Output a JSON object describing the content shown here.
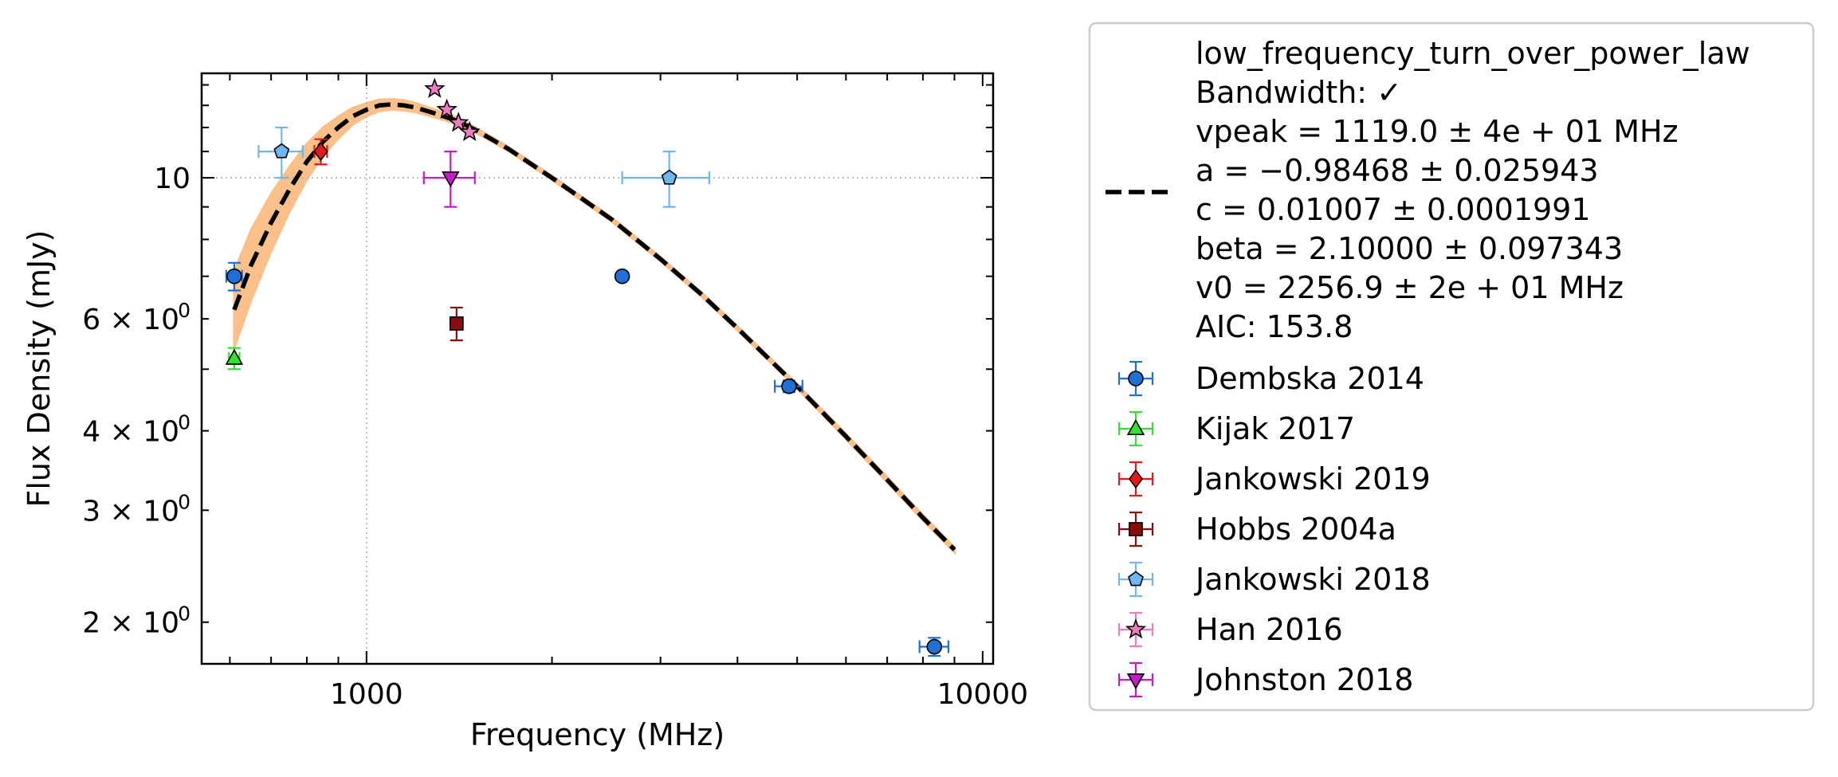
{
  "chart_data": {
    "type": "scatter",
    "xlabel": "Frequency (MHz)",
    "ylabel": "Flux Density (mJy)",
    "xscale": "log",
    "yscale": "log",
    "xlim": [
      540,
      10400
    ],
    "ylim": [
      1.72,
      14.6
    ],
    "grid": "dotted lines at x=1000 and y=10",
    "x_ticks": [
      {
        "value": 1000,
        "label": "1000"
      },
      {
        "value": 10000,
        "label": "10000"
      }
    ],
    "y_ticks": [
      {
        "value": 10,
        "label": "10",
        "sup": ""
      },
      {
        "value": 6,
        "label": "6 × 10",
        "sup": "0"
      },
      {
        "value": 4,
        "label": "4 × 10",
        "sup": "0"
      },
      {
        "value": 3,
        "label": "3 × 10",
        "sup": "0"
      },
      {
        "value": 2,
        "label": "2 × 10",
        "sup": "0"
      }
    ],
    "legend_position": "outside-right",
    "model": {
      "name": "low_frequency_turn_over_power_law",
      "lines": [
        "low_frequency_turn_over_power_law",
        "Bandwidth: ✓",
        "vpeak = 1119.0 ± 4e + 01 MHz",
        "a = −0.98468 ± 0.025943",
        "c = 0.01007 ± 0.0001991",
        "beta = 2.10000 ± 0.097343",
        "v0 = 2256.9 ± 2e + 01 MHz",
        "AIC: 153.8"
      ],
      "color": "#000000",
      "band_color": "#fbbf8a",
      "curve": {
        "x": [
          610,
          650,
          700,
          750,
          800,
          850,
          900,
          950,
          1000,
          1050,
          1100,
          1150,
          1200,
          1300,
          1400,
          1500,
          1700,
          2000,
          2500,
          3000,
          3500,
          4000,
          5000,
          6000,
          7000,
          8000,
          9000
        ],
        "y": [
          6.2,
          7.3,
          8.5,
          9.6,
          10.6,
          11.4,
          12.0,
          12.5,
          12.8,
          13.0,
          13.05,
          13.0,
          12.9,
          12.6,
          12.3,
          11.9,
          11.1,
          10.0,
          8.6,
          7.45,
          6.55,
          5.8,
          4.7,
          3.92,
          3.35,
          2.92,
          2.6
        ]
      },
      "band_halfwidth": [
        0.06,
        0.055,
        0.045,
        0.035,
        0.028,
        0.022,
        0.017,
        0.013,
        0.01,
        0.009,
        0.008,
        0.008,
        0.007,
        0.006,
        0.005,
        0.004,
        0.003,
        0.003,
        0.003,
        0.003,
        0.003,
        0.003,
        0.003,
        0.004,
        0.004,
        0.004,
        0.004
      ]
    },
    "series": [
      {
        "name": "Dembska 2014",
        "marker": "circle",
        "color": "#1f6fd6",
        "errcolor": "#1f6fd6",
        "points": [
          {
            "x": 610,
            "y": 7.0,
            "xerr": 18,
            "yerr": 0.35
          },
          {
            "x": 2600,
            "y": 7.0,
            "xerr": 0,
            "yerr": 0
          },
          {
            "x": 4850,
            "y": 4.7,
            "xerr": 250,
            "yerr": 0.1
          },
          {
            "x": 8350,
            "y": 1.83,
            "xerr": 450,
            "yerr": 0.06
          }
        ]
      },
      {
        "name": "Kijak 2017",
        "marker": "triangle-up",
        "color": "#33e033",
        "errcolor": "#33e033",
        "points": [
          {
            "x": 610,
            "y": 5.2,
            "xerr": 12,
            "yerr": 0.2
          }
        ]
      },
      {
        "name": "Jankowski 2019",
        "marker": "diamond",
        "color": "#e8181a",
        "errcolor": "#e8181a",
        "points": [
          {
            "x": 843,
            "y": 11.0,
            "xerr": 20,
            "yerr": 0.5
          }
        ]
      },
      {
        "name": "Hobbs 2004a",
        "marker": "square",
        "color": "#8b0c0c",
        "errcolor": "#8b0c0c",
        "points": [
          {
            "x": 1400,
            "y": 5.9,
            "xerr": 30,
            "yerr": 0.35
          }
        ]
      },
      {
        "name": "Jankowski 2018",
        "marker": "pentagon",
        "color": "#6fb6f2",
        "errcolor": "#6fb6f2",
        "points": [
          {
            "x": 728,
            "y": 11.0,
            "xerr": 60,
            "yerr": 1.0
          },
          {
            "x": 3100,
            "y": 10.0,
            "xerr": 500,
            "yerr": 1.0
          }
        ]
      },
      {
        "name": "Han 2016",
        "marker": "star",
        "color": "#f07cc0",
        "errcolor": "#f07cc0",
        "points": [
          {
            "x": 1290,
            "y": 13.8,
            "xerr": 0,
            "yerr": 0
          },
          {
            "x": 1350,
            "y": 12.8,
            "xerr": 0,
            "yerr": 0
          },
          {
            "x": 1410,
            "y": 12.2,
            "xerr": 0,
            "yerr": 0
          },
          {
            "x": 1470,
            "y": 11.8,
            "xerr": 0,
            "yerr": 0
          }
        ]
      },
      {
        "name": "Johnston 2018",
        "marker": "triangle-down",
        "color": "#c21cc8",
        "errcolor": "#c21cc8",
        "points": [
          {
            "x": 1369,
            "y": 10.0,
            "xerr": 130,
            "yerr": 1.0
          }
        ]
      }
    ]
  }
}
